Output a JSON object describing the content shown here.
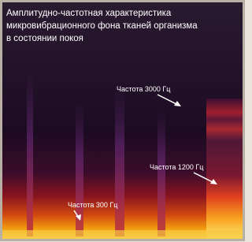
{
  "title": {
    "lines": [
      "Амплитудно-частотная  характеристика",
      "микровибрационного фона тканей организма",
      "в состоянии покоя"
    ]
  },
  "annotations": [
    {
      "label": "Частота 3000 Гц"
    },
    {
      "label": "Частота 1200 Гц"
    },
    {
      "label": "Частота 300 Гц"
    }
  ]
}
